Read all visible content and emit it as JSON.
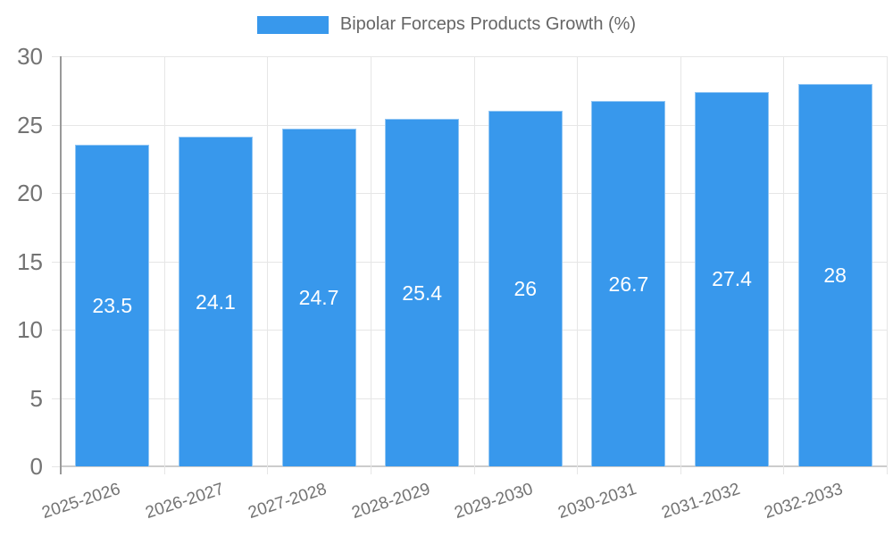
{
  "legend": {
    "label": "Bipolar Forceps Products Growth (%)"
  },
  "chart_data": {
    "type": "bar",
    "title": "Bipolar Forceps Products Growth (%)",
    "categories": [
      "2025-2026",
      "2026-2027",
      "2027-2028",
      "2028-2029",
      "2029-2030",
      "2030-2031",
      "2031-2032",
      "2032-2033"
    ],
    "values": [
      23.5,
      24.1,
      24.7,
      25.4,
      26,
      26.7,
      27.4,
      28
    ],
    "value_labels": [
      "23.5",
      "24.1",
      "24.7",
      "25.4",
      "26",
      "26.7",
      "27.4",
      "28"
    ],
    "xlabel": "",
    "ylabel": "",
    "ylim": [
      0,
      30
    ],
    "yticks": [
      0,
      5,
      10,
      15,
      20,
      25,
      30
    ],
    "grid": true,
    "legend_position": "top",
    "colors": {
      "bar": "#3898ec",
      "grid": "#e6e6e6",
      "zero_line": "#cccccc",
      "axis_line": "#999999",
      "tick_text": "#737373",
      "legend_text": "#666666",
      "value_text": "#ffffff"
    }
  }
}
